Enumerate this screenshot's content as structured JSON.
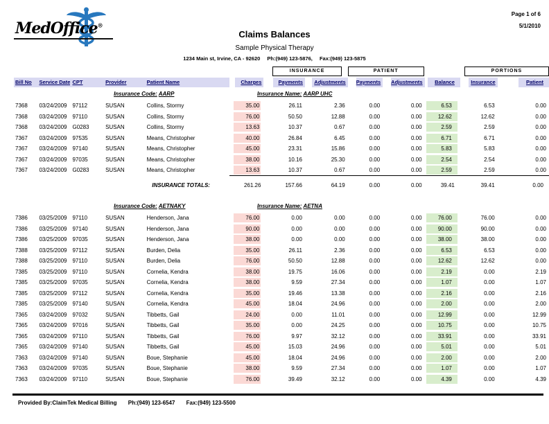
{
  "page": {
    "page_info": "Page 1 of 6",
    "date": "5/1/2010",
    "logo_text": "MedOffice",
    "logo_reg": "®",
    "title": "Claims Balances",
    "practice": "Sample Physical Therapy",
    "address": "1234 Main st, Irvine, CA - 92620",
    "address_phone": "Ph:(949) 123-5876,",
    "address_fax": "Fax:(949) 123-5875",
    "footer_provided": "Provided By:ClaimTek Medical Billing",
    "footer_phone": "Ph:(949) 123-6547",
    "footer_fax": "Fax:(949) 123-5500"
  },
  "colors": {
    "header_bg": "#d9d9f2",
    "charges_bg": "#fbd9d5",
    "balance_bg": "#d8edcc",
    "logo_blue": "#2878be"
  },
  "table": {
    "group_headers": {
      "insurance": "INSURANCE",
      "patient": "PATIENT",
      "portions": "PORTIONS"
    },
    "columns": [
      "Bill No",
      "Service Date",
      "CPT",
      "Provider",
      "Patient Name",
      "Charges",
      "Payments",
      "Adjustments",
      "Payments",
      "Adjustments",
      "Balance",
      "Insurance",
      "Patient"
    ],
    "sections": [
      {
        "code_label": "Insurance Code:",
        "code": "AARP",
        "name_label": "Insurance Name:",
        "name": "AARP UHC",
        "rows": [
          [
            "7368",
            "03/24/2009",
            "97112",
            "SUSAN",
            "Collins, Stormy",
            "35.00",
            "26.11",
            "2.36",
            "0.00",
            "0.00",
            "6.53",
            "6.53",
            "0.00"
          ],
          [
            "7368",
            "03/24/2009",
            "97110",
            "SUSAN",
            "Collins, Stormy",
            "76.00",
            "50.50",
            "12.88",
            "0.00",
            "0.00",
            "12.62",
            "12.62",
            "0.00"
          ],
          [
            "7368",
            "03/24/2009",
            "G0283",
            "SUSAN",
            "Collins, Stormy",
            "13.63",
            "10.37",
            "0.67",
            "0.00",
            "0.00",
            "2.59",
            "2.59",
            "0.00"
          ],
          [
            "7367",
            "03/24/2009",
            "97535",
            "SUSAN",
            "Means, Christopher",
            "40.00",
            "26.84",
            "6.45",
            "0.00",
            "0.00",
            "6.71",
            "6.71",
            "0.00"
          ],
          [
            "7367",
            "03/24/2009",
            "97140",
            "SUSAN",
            "Means, Christopher",
            "45.00",
            "23.31",
            "15.86",
            "0.00",
            "0.00",
            "5.83",
            "5.83",
            "0.00"
          ],
          [
            "7367",
            "03/24/2009",
            "97035",
            "SUSAN",
            "Means, Christopher",
            "38.00",
            "10.16",
            "25.30",
            "0.00",
            "0.00",
            "2.54",
            "2.54",
            "0.00"
          ],
          [
            "7367",
            "03/24/2009",
            "G0283",
            "SUSAN",
            "Means, Christopher",
            "13.63",
            "10.37",
            "0.67",
            "0.00",
            "0.00",
            "2.59",
            "2.59",
            "0.00"
          ]
        ],
        "totals_label": "INSURANCE TOTALS:",
        "totals": [
          "261.26",
          "157.66",
          "64.19",
          "0.00",
          "0.00",
          "39.41",
          "39.41",
          "0.00"
        ]
      },
      {
        "code_label": "Insurance Code:",
        "code": "AETNAKY",
        "name_label": "Insurance Name:",
        "name": "AETNA",
        "rows": [
          [
            "7386",
            "03/25/2009",
            "97110",
            "SUSAN",
            "Henderson, Jana",
            "76.00",
            "0.00",
            "0.00",
            "0.00",
            "0.00",
            "76.00",
            "76.00",
            "0.00"
          ],
          [
            "7386",
            "03/25/2009",
            "97140",
            "SUSAN",
            "Henderson, Jana",
            "90.00",
            "0.00",
            "0.00",
            "0.00",
            "0.00",
            "90.00",
            "90.00",
            "0.00"
          ],
          [
            "7386",
            "03/25/2009",
            "97035",
            "SUSAN",
            "Henderson, Jana",
            "38.00",
            "0.00",
            "0.00",
            "0.00",
            "0.00",
            "38.00",
            "38.00",
            "0.00"
          ],
          [
            "7388",
            "03/25/2009",
            "97112",
            "SUSAN",
            "Burden, Delia",
            "35.00",
            "26.11",
            "2.36",
            "0.00",
            "0.00",
            "6.53",
            "6.53",
            "0.00"
          ],
          [
            "7388",
            "03/25/2009",
            "97110",
            "SUSAN",
            "Burden, Delia",
            "76.00",
            "50.50",
            "12.88",
            "0.00",
            "0.00",
            "12.62",
            "12.62",
            "0.00"
          ],
          [
            "7385",
            "03/25/2009",
            "97110",
            "SUSAN",
            "Cornelia, Kendra",
            "38.00",
            "19.75",
            "16.06",
            "0.00",
            "0.00",
            "2.19",
            "0.00",
            "2.19"
          ],
          [
            "7385",
            "03/25/2009",
            "97035",
            "SUSAN",
            "Cornelia, Kendra",
            "38.00",
            "9.59",
            "27.34",
            "0.00",
            "0.00",
            "1.07",
            "0.00",
            "1.07"
          ],
          [
            "7385",
            "03/25/2009",
            "97112",
            "SUSAN",
            "Cornelia, Kendra",
            "35.00",
            "19.46",
            "13.38",
            "0.00",
            "0.00",
            "2.16",
            "0.00",
            "2.16"
          ],
          [
            "7385",
            "03/25/2009",
            "97140",
            "SUSAN",
            "Cornelia, Kendra",
            "45.00",
            "18.04",
            "24.96",
            "0.00",
            "0.00",
            "2.00",
            "0.00",
            "2.00"
          ],
          [
            "7365",
            "03/24/2009",
            "97032",
            "SUSAN",
            "Tibbetts, Gail",
            "24.00",
            "0.00",
            "11.01",
            "0.00",
            "0.00",
            "12.99",
            "0.00",
            "12.99"
          ],
          [
            "7365",
            "03/24/2009",
            "97016",
            "SUSAN",
            "Tibbetts, Gail",
            "35.00",
            "0.00",
            "24.25",
            "0.00",
            "0.00",
            "10.75",
            "0.00",
            "10.75"
          ],
          [
            "7365",
            "03/24/2009",
            "97110",
            "SUSAN",
            "Tibbetts, Gail",
            "76.00",
            "9.97",
            "32.12",
            "0.00",
            "0.00",
            "33.91",
            "0.00",
            "33.91"
          ],
          [
            "7365",
            "03/24/2009",
            "97140",
            "SUSAN",
            "Tibbetts, Gail",
            "45.00",
            "15.03",
            "24.96",
            "0.00",
            "0.00",
            "5.01",
            "0.00",
            "5.01"
          ],
          [
            "7363",
            "03/24/2009",
            "97140",
            "SUSAN",
            "Boue, Stephanie",
            "45.00",
            "18.04",
            "24.96",
            "0.00",
            "0.00",
            "2.00",
            "0.00",
            "2.00"
          ],
          [
            "7363",
            "03/24/2009",
            "97035",
            "SUSAN",
            "Boue, Stephanie",
            "38.00",
            "9.59",
            "27.34",
            "0.00",
            "0.00",
            "1.07",
            "0.00",
            "1.07"
          ],
          [
            "7363",
            "03/24/2009",
            "97110",
            "SUSAN",
            "Boue, Stephanie",
            "76.00",
            "39.49",
            "32.12",
            "0.00",
            "0.00",
            "4.39",
            "0.00",
            "4.39"
          ]
        ],
        "totals_label": null,
        "totals": null
      }
    ]
  }
}
